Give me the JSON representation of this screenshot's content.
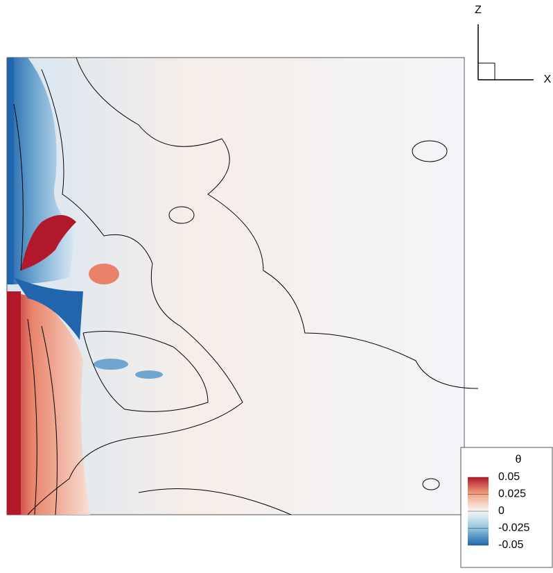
{
  "chart_data": {
    "type": "contour",
    "colorbar_title": "θ",
    "clim": [
      -0.05,
      0.05
    ],
    "cticks": [
      0.05,
      0.025,
      0,
      -0.025,
      -0.05
    ],
    "colormap": [
      "#2166ac",
      "#92c5de",
      "#f7f7f7",
      "#f4a582",
      "#b2182b"
    ],
    "axes": {
      "vertical": "Z",
      "horizontal": "X"
    }
  }
}
